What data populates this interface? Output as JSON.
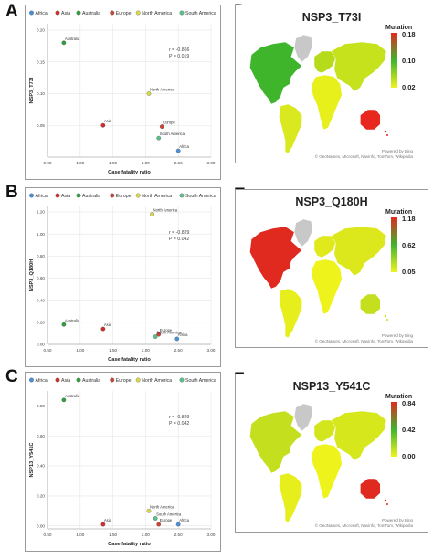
{
  "panel_letters": {
    "A": "A",
    "B": "B",
    "C": "C",
    "D": "D",
    "E": "E",
    "F": "F"
  },
  "colors": {
    "Africa": "#4a8fd9",
    "Asia": "#d22b2b",
    "Australia": "#2e9e3e",
    "Europe": "#cc4433",
    "North America": "#d9d94a",
    "South America": "#5bbf8a"
  },
  "chart_data": [
    {
      "type": "scatter",
      "panel": "A",
      "legend_entries": [
        "Africa",
        "Asia",
        "Australia",
        "Europe",
        "North America",
        "South America"
      ],
      "xlabel": "Case fatality ratio",
      "ylabel": "NSP3_T73I",
      "xlim": [
        0.5,
        3.0
      ],
      "ylim": [
        0.0,
        0.21
      ],
      "xticks": [
        "0.50",
        "1.00",
        "1.50",
        "2.00",
        "2.50",
        "3.00"
      ],
      "yticks": [
        "0.20",
        "0.15",
        "0.10",
        "0.05"
      ],
      "ytick_values": [
        0.2,
        0.15,
        0.1,
        0.05
      ],
      "stats": [
        "r = -0.866",
        "P = 0.019"
      ],
      "points": [
        {
          "label": "Australia",
          "x": 0.75,
          "y": 0.18
        },
        {
          "label": "North America",
          "x": 2.05,
          "y": 0.1
        },
        {
          "label": "Asia",
          "x": 1.35,
          "y": 0.05
        },
        {
          "label": "Europe",
          "x": 2.25,
          "y": 0.048
        },
        {
          "label": "South America",
          "x": 2.2,
          "y": 0.03
        },
        {
          "label": "Africa",
          "x": 2.5,
          "y": 0.01
        }
      ]
    },
    {
      "type": "scatter",
      "panel": "B",
      "legend_entries": [
        "Africa",
        "Asia",
        "Australia",
        "Europe",
        "North America",
        "South America"
      ],
      "xlabel": "Case fatality ratio",
      "ylabel": "NSP3_Q180H",
      "xlim": [
        0.5,
        3.0
      ],
      "ylim": [
        0.0,
        1.25
      ],
      "xticks": [
        "0.50",
        "1.00",
        "1.50",
        "2.00",
        "2.50",
        "3.00"
      ],
      "yticks": [
        "1.20",
        "1.00",
        "0.80",
        "0.60",
        "0.40",
        "0.20",
        "0.00"
      ],
      "ytick_values": [
        1.2,
        1.0,
        0.8,
        0.6,
        0.4,
        0.2,
        0.0
      ],
      "stats": [
        "r = -0.829",
        "P = 0.042"
      ],
      "points": [
        {
          "label": "North America",
          "x": 2.1,
          "y": 1.18
        },
        {
          "label": "Australia",
          "x": 0.75,
          "y": 0.18
        },
        {
          "label": "Asia",
          "x": 1.35,
          "y": 0.14
        },
        {
          "label": "Europe",
          "x": 2.2,
          "y": 0.09
        },
        {
          "label": "South America",
          "x": 2.15,
          "y": 0.07
        },
        {
          "label": "Africa",
          "x": 2.48,
          "y": 0.05
        }
      ]
    },
    {
      "type": "scatter",
      "panel": "C",
      "legend_entries": [
        "Africa",
        "Asia",
        "Australia",
        "Europe",
        "North America",
        "South America"
      ],
      "xlabel": "Case fatality ratio",
      "ylabel": "NSP13_Y541C",
      "xlim": [
        0.5,
        3.0
      ],
      "ylim": [
        -0.02,
        0.9
      ],
      "xticks": [
        "0.50",
        "1.00",
        "1.50",
        "2.00",
        "2.50",
        "3.00"
      ],
      "yticks": [
        "0.80",
        "0.60",
        "0.40",
        "0.20",
        "0.00"
      ],
      "ytick_values": [
        0.8,
        0.6,
        0.4,
        0.2,
        0.0
      ],
      "stats": [
        "r = -0.829",
        "P = 0.042"
      ],
      "points": [
        {
          "label": "Australia",
          "x": 0.75,
          "y": 0.84
        },
        {
          "label": "North America",
          "x": 2.05,
          "y": 0.1
        },
        {
          "label": "South America",
          "x": 2.15,
          "y": 0.05
        },
        {
          "label": "Asia",
          "x": 1.35,
          "y": 0.01
        },
        {
          "label": "Europe",
          "x": 2.2,
          "y": 0.01
        },
        {
          "label": "Africa",
          "x": 2.5,
          "y": 0.01
        }
      ]
    }
  ],
  "maps": [
    {
      "panel": "D",
      "title": "NSP3_T73I",
      "legend_title": "Mutation",
      "scale_labels": [
        "0.18",
        "0.10",
        "0.02"
      ],
      "credit_line1": "Powered by Bing",
      "credit_line2": "© GeoNames, Microsoft, Navinfo, TomTom, Wikipedia",
      "region_colors": {
        "north_america": "#3fb52c",
        "south_america": "#d9e81f",
        "europe": "#b5db1a",
        "africa": "#e8f01c",
        "asia": "#c6e21d",
        "australia": "#e8281e",
        "greenland": "#c8c8c8"
      }
    },
    {
      "panel": "E",
      "title": "NSP3_Q180H",
      "legend_title": "Mutation",
      "scale_labels": [
        "1.18",
        "0.62",
        "0.05"
      ],
      "credit_line1": "Powered by Bing",
      "credit_line2": "© GeoNames, Microsoft, Navinfo, TomTom, Wikipedia",
      "region_colors": {
        "north_america": "#e02a20",
        "south_america": "#e6ee1c",
        "europe": "#dfe91c",
        "africa": "#eef31c",
        "asia": "#dde81c",
        "australia": "#c3df1e",
        "greenland": "#c8c8c8"
      }
    },
    {
      "panel": "F",
      "title": "NSP13_Y541C",
      "legend_title": "Mutation",
      "scale_labels": [
        "0.84",
        "0.42",
        "0.00"
      ],
      "credit_line1": "Powered by Bing",
      "credit_line2": "© GeoNames, Microsoft, Navinfo, TomTom, Wikipedia",
      "region_colors": {
        "north_america": "#c4df1d",
        "south_america": "#e6ee1c",
        "europe": "#d3e51c",
        "africa": "#eef31c",
        "asia": "#d6e71c",
        "australia": "#e02a20",
        "greenland": "#c8c8c8"
      }
    }
  ]
}
